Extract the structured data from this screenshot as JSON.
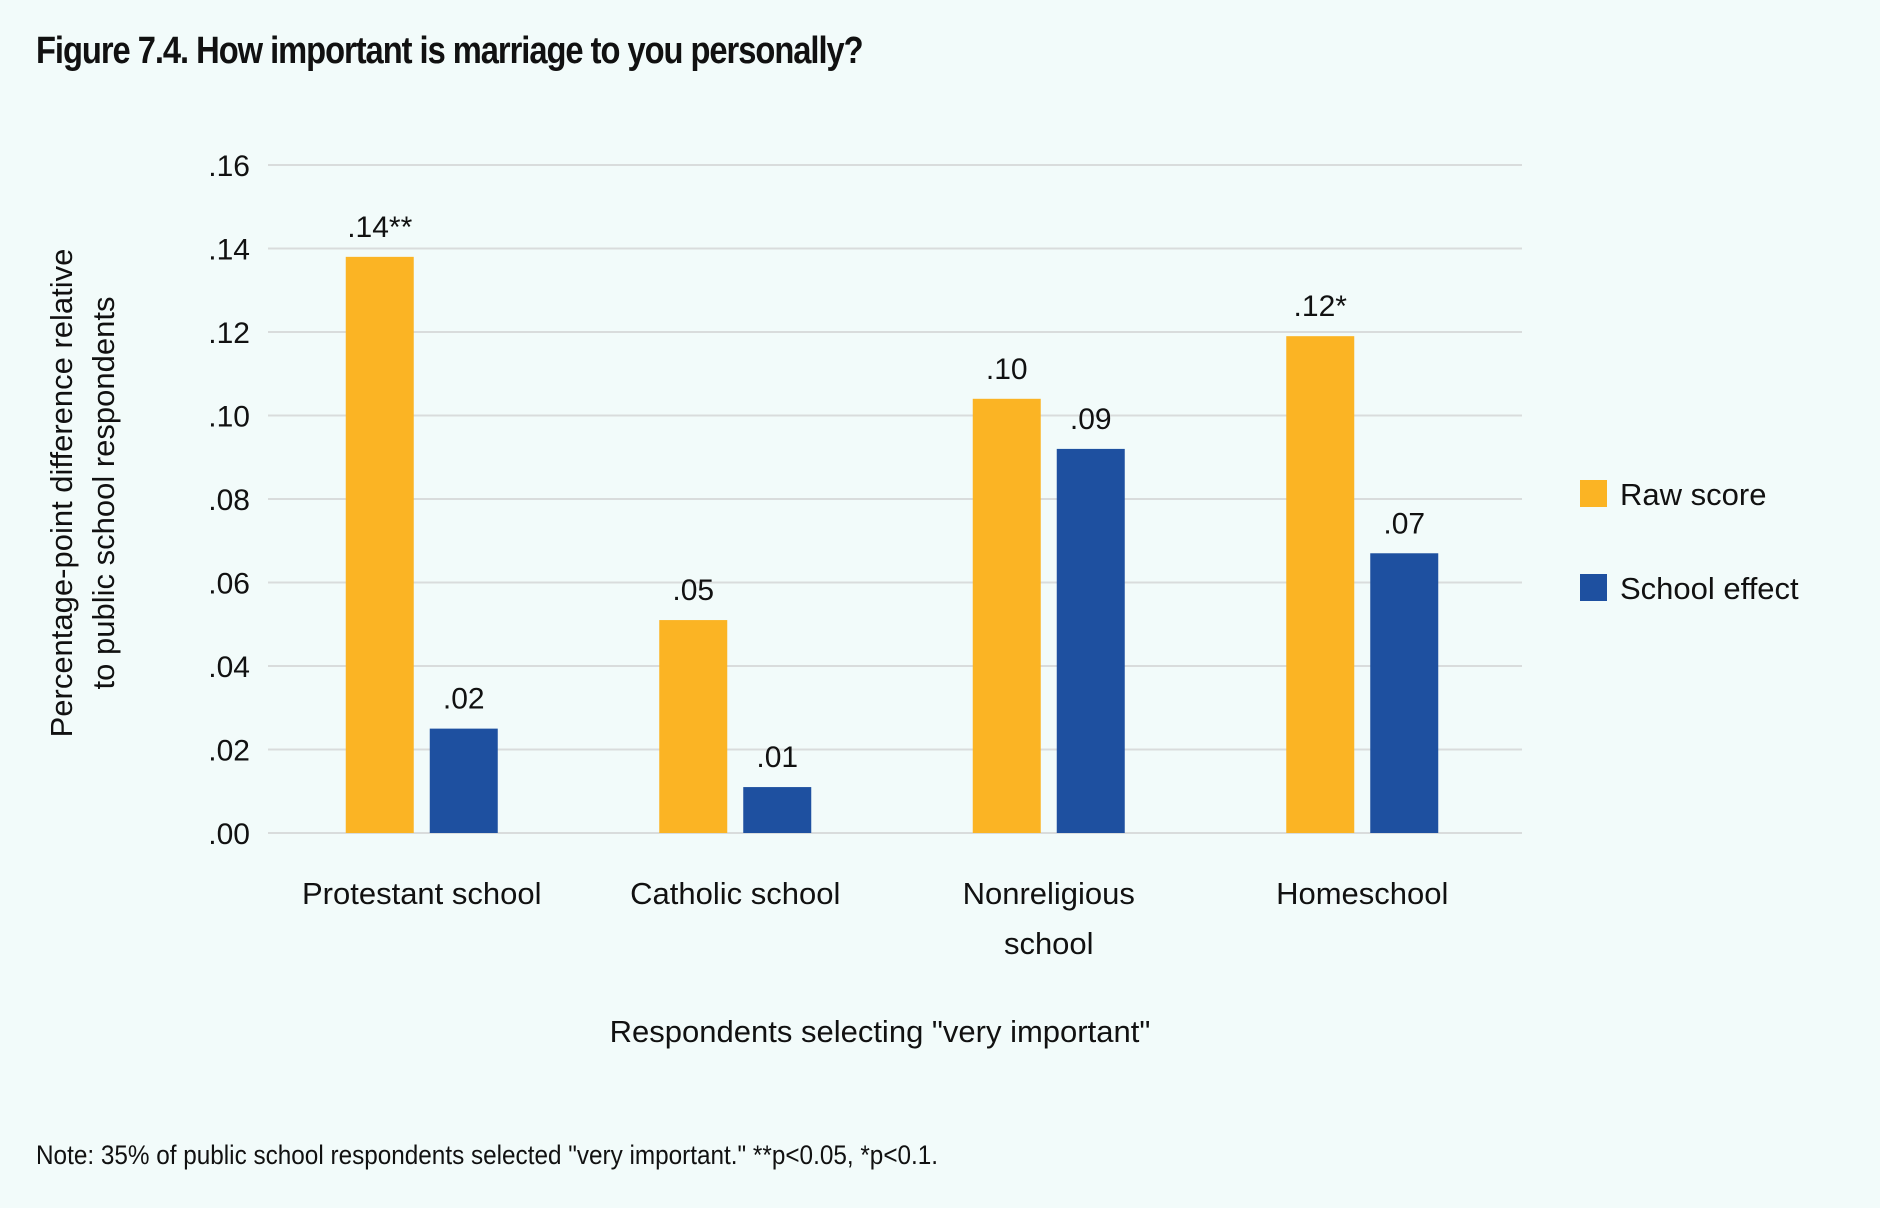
{
  "title": "Figure 7.4. How important is marriage to you personally?",
  "note": "Note: 35% of public school respondents selected \"very important.\" **p<0.05, *p<0.1.",
  "colors": {
    "raw": "#FBB424",
    "effect": "#1E50A0",
    "grid": "#D9DCDC",
    "background": "#F2FBFA"
  },
  "chart_data": {
    "type": "bar",
    "title": "Figure 7.4. How important is marriage to you personally?",
    "xlabel": "Respondents selecting \"very important\"",
    "ylabel": "Percentage-point difference relative to public school respondents",
    "ylabel_lines": [
      "Percentage-point difference relative",
      "to public school respondents"
    ],
    "categories": [
      "Protestant school",
      "Catholic school",
      "Nonreligious school",
      "Homeschool"
    ],
    "category_lines": [
      [
        "Protestant school"
      ],
      [
        "Catholic school"
      ],
      [
        "Nonreligious",
        "school"
      ],
      [
        "Homeschool"
      ]
    ],
    "series": [
      {
        "name": "Raw score",
        "color": "#FBB424",
        "values": [
          0.138,
          0.051,
          0.104,
          0.119
        ],
        "labels": [
          ".14**",
          ".05",
          ".10",
          ".12*"
        ]
      },
      {
        "name": "School effect",
        "color": "#1E50A0",
        "values": [
          0.025,
          0.011,
          0.092,
          0.067
        ],
        "labels": [
          ".02",
          ".01",
          ".09",
          ".07"
        ]
      }
    ],
    "ylim": [
      0,
      0.16
    ],
    "yticks": [
      0,
      0.02,
      0.04,
      0.06,
      0.08,
      0.1,
      0.12,
      0.14,
      0.16
    ],
    "ytick_labels": [
      ".00",
      ".02",
      ".04",
      ".06",
      ".08",
      ".10",
      ".12",
      ".14",
      ".16"
    ],
    "grid": true,
    "legend_position": "right"
  }
}
